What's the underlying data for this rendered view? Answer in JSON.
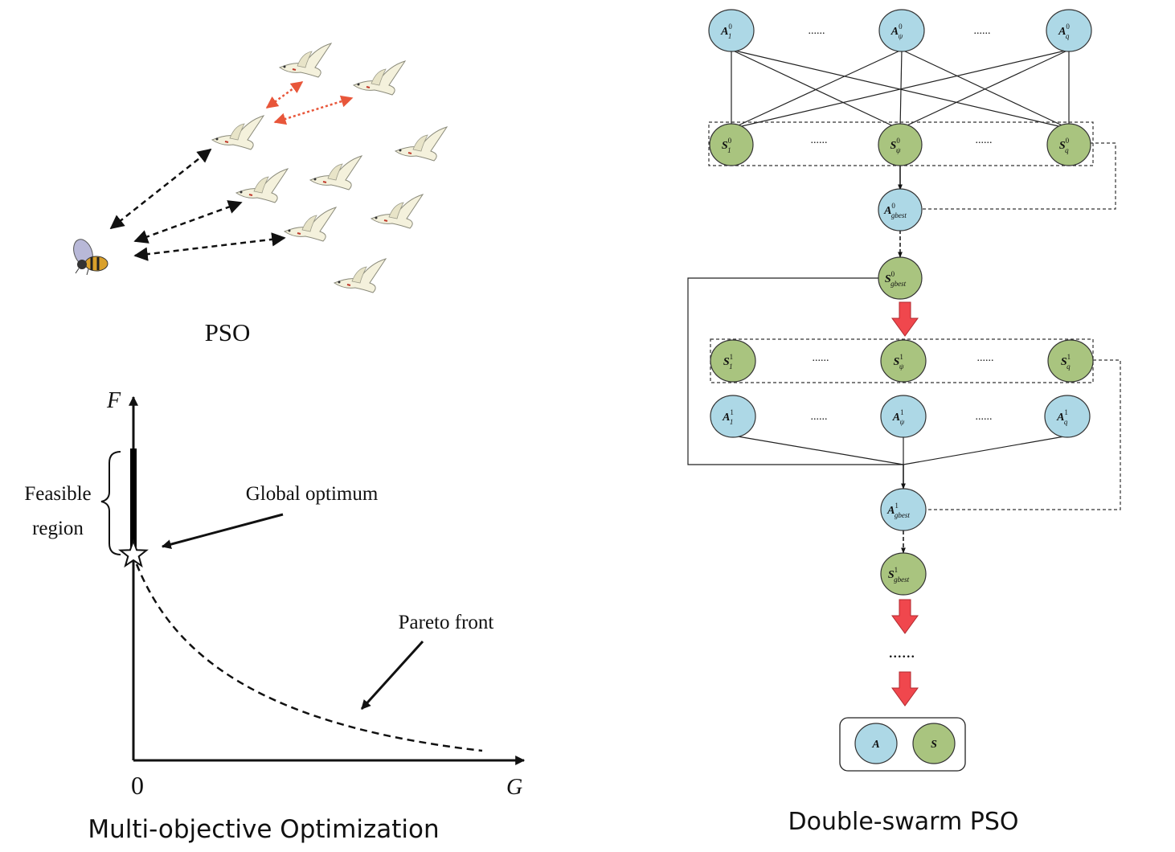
{
  "colors": {
    "node_a": "#add8e6",
    "node_s": "#a9c47f",
    "red_arrow": "#f0474d",
    "pso_red": "#e8563a",
    "line": "#111111"
  },
  "pso": {
    "caption": "PSO",
    "icons": [
      "bird-icon",
      "bee-icon"
    ]
  },
  "moo": {
    "caption": "Multi-objective Optimization",
    "f_label": "F",
    "g_label": "G",
    "origin": "0",
    "feasible_line1": "Feasible",
    "feasible_line2": "region",
    "global_optimum": "Global optimum",
    "pareto_front": "Pareto front"
  },
  "dspso": {
    "caption": "Double-swarm PSO",
    "ellipsis": "......",
    "big_ellipsis": "......",
    "row0_a": [
      {
        "base": "A",
        "sup": "0",
        "sub": "1"
      },
      {
        "base": "A",
        "sup": "0",
        "sub": "ψ"
      },
      {
        "base": "A",
        "sup": "0",
        "sub": "q"
      }
    ],
    "row0_s": [
      {
        "base": "S",
        "sup": "0",
        "sub": "1"
      },
      {
        "base": "S",
        "sup": "0",
        "sub": "ψ"
      },
      {
        "base": "S",
        "sup": "0",
        "sub": "q"
      }
    ],
    "gbest_a0": {
      "base": "A",
      "sup": "0",
      "sub": "gbest"
    },
    "gbest_s0": {
      "base": "S",
      "sup": "0",
      "sub": "gbest"
    },
    "row1_s": [
      {
        "base": "S",
        "sup": "1",
        "sub": "1"
      },
      {
        "base": "S",
        "sup": "1",
        "sub": "ψ"
      },
      {
        "base": "S",
        "sup": "1",
        "sub": "q"
      }
    ],
    "row1_a": [
      {
        "base": "A",
        "sup": "1",
        "sub": "1"
      },
      {
        "base": "A",
        "sup": "1",
        "sub": "ψ"
      },
      {
        "base": "A",
        "sup": "1",
        "sub": "q"
      }
    ],
    "gbest_a1": {
      "base": "A",
      "sup": "1",
      "sub": "gbest"
    },
    "gbest_s1": {
      "base": "S",
      "sup": "1",
      "sub": "gbest"
    },
    "final_a": "A",
    "final_s": "S"
  }
}
